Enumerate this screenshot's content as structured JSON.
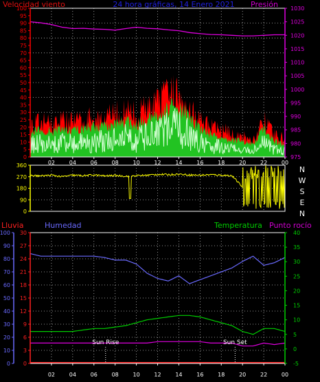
{
  "header": {
    "left_title": "Velocidad viento",
    "center_title": "24 hora gráficas, 14 Enero 2021",
    "right_title": "Presión"
  },
  "mid_header": {
    "rain": "Lluvia",
    "humidity": "Humedad",
    "temperature": "Temperatura",
    "dew_point": "Punto rocío"
  },
  "colors": {
    "background": "#000000",
    "grid": "#c0c0c0",
    "frame": "#ffffff",
    "wind_gust": "#ff0000",
    "wind_avg": "#22c322",
    "wind_min": "#d8ffd8",
    "pressure": "#e000e0",
    "direction": "#ffff00",
    "humidity": "#6a6aff",
    "temperature": "#00d000",
    "dew_point": "#e000e0",
    "rain": "#ff2020",
    "header_wind": "#e01010",
    "header_center": "#2020e0",
    "header_pressure": "#d000d0"
  },
  "chart_data": [
    {
      "type": "line",
      "title": "24 hora gráficas, 14 Enero 2021",
      "x_tick_labels": [
        "02",
        "04",
        "06",
        "08",
        "10",
        "12",
        "14",
        "16",
        "18",
        "20",
        "22",
        "00"
      ],
      "y_left_ticks": [
        0,
        5,
        10,
        15,
        20,
        25,
        30,
        35,
        40,
        45,
        50,
        55,
        60,
        65,
        70,
        75,
        80,
        85,
        90,
        95,
        100
      ],
      "y_right_ticks": [
        975,
        980,
        985,
        990,
        995,
        1000,
        1005,
        1010,
        1015,
        1020,
        1025,
        1030
      ],
      "ylim_left": [
        0,
        100
      ],
      "ylim_right": [
        975,
        1030
      ],
      "grid": true,
      "x_hours": [
        0,
        1,
        2,
        3,
        4,
        5,
        6,
        7,
        8,
        9,
        10,
        11,
        12,
        13,
        14,
        15,
        16,
        17,
        18,
        19,
        20,
        21,
        22,
        23,
        24
      ],
      "series": [
        {
          "name": "Velocidad viento",
          "axis": "left",
          "values": [
            24,
            27,
            26,
            29,
            27,
            28,
            31,
            30,
            33,
            35,
            33,
            38,
            41,
            48,
            50,
            39,
            28,
            23,
            21,
            18,
            16,
            13,
            28,
            17,
            14
          ]
        },
        {
          "axis": "left",
          "values": [
            17,
            19,
            18,
            20,
            19,
            20,
            22,
            21,
            24,
            25,
            23,
            26,
            29,
            34,
            36,
            28,
            20,
            16,
            14,
            12,
            11,
            9,
            20,
            11,
            9
          ]
        },
        {
          "axis": "left",
          "values": [
            10,
            11,
            10,
            12,
            11,
            12,
            13,
            13,
            15,
            16,
            14,
            17,
            19,
            23,
            24,
            18,
            12,
            10,
            8,
            7,
            6,
            5,
            11,
            6,
            5
          ]
        },
        {
          "name": "Presión",
          "axis": "right",
          "values": [
            1025.0,
            1024.6,
            1024.0,
            1023.0,
            1022.5,
            1022.6,
            1022.3,
            1022.2,
            1021.9,
            1022.5,
            1023.0,
            1022.6,
            1022.4,
            1022.0,
            1021.7,
            1021.0,
            1020.6,
            1020.3,
            1020.2,
            1020.0,
            1019.8,
            1019.8,
            1020.0,
            1020.2,
            1020.2
          ]
        }
      ]
    },
    {
      "type": "scatter",
      "y_tick_labels": [
        "360",
        "270",
        "180",
        "90",
        "0"
      ],
      "direction_labels": [
        "N",
        "W",
        "S",
        "E",
        "N"
      ],
      "ylim": [
        0,
        360
      ],
      "grid": true,
      "series": [
        {
          "x_hours": [
            0,
            1,
            2,
            3,
            4,
            5,
            6,
            7,
            8,
            9,
            10,
            11,
            12,
            13,
            14,
            15,
            16,
            17,
            18,
            19,
            20,
            21,
            22,
            23,
            24
          ],
          "values": [
            280,
            276,
            282,
            270,
            282,
            278,
            284,
            276,
            280,
            274,
            278,
            282,
            288,
            286,
            290,
            284,
            282,
            286,
            282,
            278,
            190,
            60,
            300,
            110,
            240
          ]
        }
      ]
    },
    {
      "type": "line",
      "x_tick_labels": [
        "02",
        "04",
        "06",
        "08",
        "10",
        "12",
        "14",
        "16",
        "18",
        "20",
        "22",
        "00"
      ],
      "y_humidity_ticks": [
        0,
        10,
        20,
        30,
        40,
        50,
        60,
        70,
        80,
        90,
        100
      ],
      "y_rain_ticks": [
        0,
        3,
        6,
        9,
        12,
        15,
        18,
        21,
        24,
        27,
        30
      ],
      "y_temperature_ticks": [
        -5,
        0,
        5,
        10,
        15,
        20,
        25,
        30,
        35,
        40
      ],
      "ylim_humidity": [
        0,
        100
      ],
      "ylim_rain": [
        0,
        30
      ],
      "ylim_temperature": [
        -5,
        40
      ],
      "grid": true,
      "annotations": [
        {
          "text": "Sun Rise",
          "x_hour": 7.1
        },
        {
          "text": "Sun Set",
          "x_hour": 19.3
        }
      ],
      "x_hours": [
        0,
        1,
        2,
        3,
        4,
        5,
        6,
        7,
        8,
        9,
        10,
        11,
        12,
        13,
        14,
        15,
        16,
        17,
        18,
        19,
        20,
        21,
        22,
        23,
        24
      ],
      "series": [
        {
          "name": "Humedad",
          "axis": "humidity",
          "values": [
            84,
            82,
            82,
            82,
            82,
            82,
            82,
            81,
            79,
            79,
            76,
            69,
            65,
            63,
            67,
            61,
            64,
            67,
            70,
            73,
            78,
            82,
            75,
            77,
            81
          ]
        },
        {
          "name": "Temperatura",
          "axis": "temperature",
          "values": [
            6,
            6,
            6,
            6,
            6,
            6.5,
            7,
            7,
            7.5,
            8,
            9,
            10,
            10.5,
            11,
            11.5,
            11.5,
            11,
            10,
            9,
            8,
            6,
            5,
            7,
            7,
            6
          ]
        },
        {
          "name": "Punto rocío",
          "axis": "temperature",
          "values": [
            2,
            2,
            2,
            2,
            2,
            2,
            2,
            2,
            2,
            2,
            2,
            2,
            2.5,
            2.5,
            2.5,
            2.5,
            2.5,
            2,
            2,
            2,
            1,
            1,
            2,
            1.5,
            2
          ]
        },
        {
          "name": "Lluvia",
          "axis": "rain",
          "values": [
            0,
            0,
            0,
            0,
            0,
            0,
            0,
            0,
            0,
            0,
            0,
            0,
            0,
            0,
            0,
            0,
            0,
            0,
            0,
            0,
            0,
            0,
            0,
            0,
            0
          ]
        }
      ]
    }
  ]
}
